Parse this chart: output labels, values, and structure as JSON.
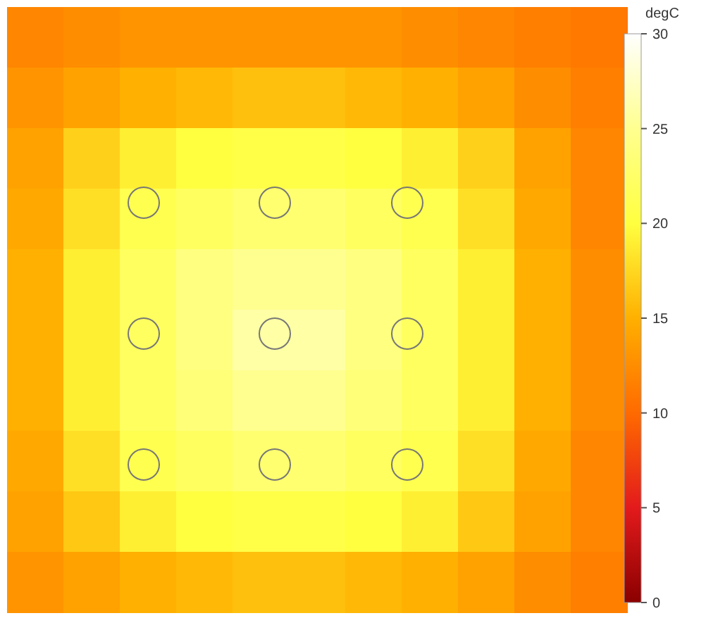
{
  "chart_data": {
    "type": "heatmap",
    "clabel": "degC",
    "clim": [
      0,
      30
    ],
    "cticks": [
      0,
      5,
      10,
      15,
      20,
      25,
      30
    ],
    "categories": [
      null,
      null,
      null,
      null,
      null,
      null,
      null,
      null,
      null,
      null,
      null
    ],
    "y_categories": [
      null,
      null,
      null,
      null,
      null,
      null,
      null,
      null,
      null,
      null
    ],
    "cells": [
      [
        12,
        12.5,
        13,
        13,
        13,
        13,
        13,
        12.5,
        12,
        11.5,
        11
      ],
      [
        13,
        14,
        15,
        15.5,
        16,
        16,
        15.5,
        15,
        14,
        12.5,
        11.5
      ],
      [
        14,
        17,
        19,
        20,
        20.5,
        20.5,
        20,
        19,
        17,
        14,
        12
      ],
      [
        14.5,
        18,
        21,
        22,
        23,
        23,
        22,
        21,
        18,
        14.5,
        12
      ],
      [
        15,
        19,
        22,
        24,
        25,
        25,
        24,
        22,
        19,
        15,
        12.5
      ],
      [
        15,
        19,
        22,
        24,
        26,
        26,
        24,
        22,
        19,
        15,
        12.5
      ],
      [
        15,
        19,
        22,
        23.5,
        25,
        25,
        23.5,
        22,
        19,
        15,
        12.5
      ],
      [
        14.5,
        18,
        21,
        22,
        23,
        23,
        22,
        21,
        18,
        14.5,
        12
      ],
      [
        14,
        16.5,
        19,
        20,
        20.5,
        20.5,
        20,
        19,
        16.5,
        14,
        12
      ],
      [
        13,
        14,
        15,
        15.5,
        16,
        16,
        15.5,
        15,
        14,
        12.5,
        11.5
      ]
    ]
  }
}
